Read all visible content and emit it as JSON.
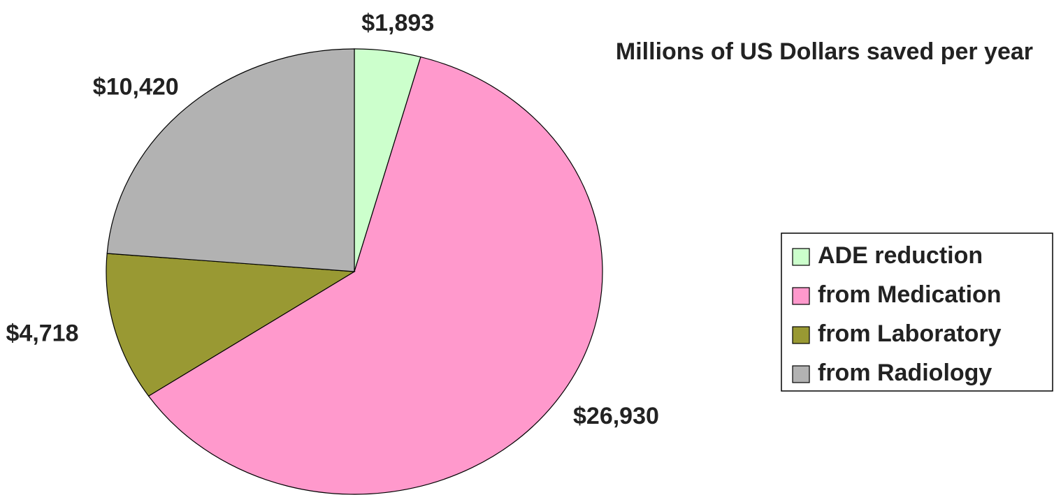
{
  "chart_data": {
    "type": "pie",
    "title": "Millions of US Dollars saved per year",
    "categories": [
      "ADE reduction",
      "from Medication",
      "from Laboratory",
      "from Radiology"
    ],
    "values": [
      1893,
      26930,
      4718,
      10420
    ],
    "value_labels": [
      "$1,893",
      "$26,930",
      "$4,718",
      "$10,420"
    ],
    "colors": [
      "#ccffcc",
      "#ff99cc",
      "#999933",
      "#b2b2b2"
    ],
    "legend": "right"
  }
}
